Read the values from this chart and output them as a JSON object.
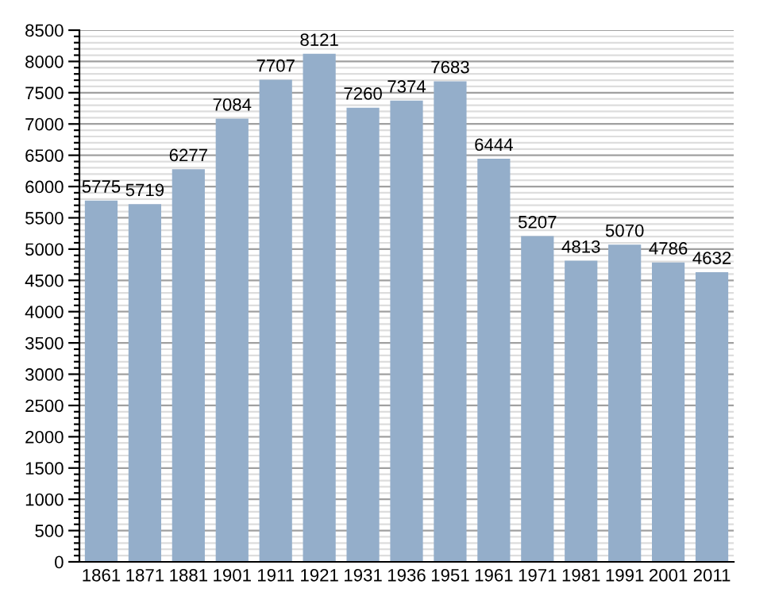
{
  "chart_data": {
    "type": "bar",
    "categories": [
      "1861",
      "1871",
      "1881",
      "1901",
      "1911",
      "1921",
      "1931",
      "1936",
      "1951",
      "1961",
      "1971",
      "1981",
      "1991",
      "2001",
      "2011"
    ],
    "values": [
      5775,
      5719,
      6277,
      7084,
      7707,
      8121,
      7260,
      7374,
      7683,
      6444,
      5207,
      4813,
      5070,
      4786,
      4632
    ],
    "color": "#94aeca",
    "data_labels": true,
    "ylim": [
      0,
      8500
    ],
    "yticks": [
      0,
      {
        "value": 100,
        "label": null
      },
      {
        "value": 200,
        "label": null
      },
      {
        "value": 300,
        "label": null
      },
      {
        "value": 400,
        "label": null
      },
      500,
      {
        "value": 600,
        "label": null
      },
      {
        "value": 700,
        "label": null
      },
      {
        "value": 800,
        "label": null
      },
      {
        "value": 900,
        "label": null
      },
      1000,
      {
        "value": 1100,
        "label": null
      },
      {
        "value": 1200,
        "label": null
      },
      {
        "value": 1300,
        "label": null
      },
      {
        "value": 1400,
        "label": null
      },
      1500,
      {
        "value": 1600,
        "label": null
      },
      {
        "value": 1700,
        "label": null
      },
      {
        "value": 1800,
        "label": null
      },
      {
        "value": 1900,
        "label": null
      },
      2000,
      {
        "value": 2100,
        "label": null
      },
      {
        "value": 2200,
        "label": null
      },
      {
        "value": 2300,
        "label": null
      },
      {
        "value": 2400,
        "label": null
      },
      2500,
      {
        "value": 2600,
        "label": null
      },
      {
        "value": 2700,
        "label": null
      },
      {
        "value": 2800,
        "label": null
      },
      {
        "value": 2900,
        "label": null
      },
      3000,
      {
        "value": 3100,
        "label": null
      },
      {
        "value": 3200,
        "label": null
      },
      {
        "value": 3300,
        "label": null
      },
      {
        "value": 3400,
        "label": null
      },
      3500,
      {
        "value": 3600,
        "label": null
      },
      {
        "value": 3700,
        "label": null
      },
      {
        "value": 3800,
        "label": null
      },
      {
        "value": 3900,
        "label": null
      },
      4000,
      {
        "value": 4100,
        "label": null
      },
      {
        "value": 4200,
        "label": null
      },
      {
        "value": 4300,
        "label": null
      },
      {
        "value": 4400,
        "label": null
      },
      4500,
      {
        "value": 4600,
        "label": null
      },
      {
        "value": 4700,
        "label": null
      },
      {
        "value": 4800,
        "label": null
      },
      {
        "value": 4900,
        "label": null
      },
      5000,
      {
        "value": 5100,
        "label": null
      },
      {
        "value": 5200,
        "label": null
      },
      {
        "value": 5300,
        "label": null
      },
      {
        "value": 5400,
        "label": null
      },
      5500,
      {
        "value": 5600,
        "label": null
      },
      {
        "value": 5700,
        "label": null
      },
      {
        "value": 5800,
        "label": null
      },
      {
        "value": 5900,
        "label": null
      },
      6000,
      {
        "value": 6100,
        "label": null
      },
      {
        "value": 6200,
        "label": null
      },
      {
        "value": 6300,
        "label": null
      },
      {
        "value": 6400,
        "label": null
      },
      6500,
      {
        "value": 6600,
        "label": null
      },
      {
        "value": 6700,
        "label": null
      },
      {
        "value": 6800,
        "label": null
      },
      {
        "value": 6900,
        "label": null
      },
      7000,
      {
        "value": 7100,
        "label": null
      },
      {
        "value": 7200,
        "label": null
      },
      {
        "value": 7300,
        "label": null
      },
      {
        "value": 7400,
        "label": null
      },
      7500,
      {
        "value": 7600,
        "label": null
      },
      {
        "value": 7700,
        "label": null
      },
      {
        "value": 7800,
        "label": null
      },
      {
        "value": 7900,
        "label": null
      },
      8000,
      {
        "value": 8100,
        "label": null
      },
      {
        "value": 8200,
        "label": null
      },
      {
        "value": 8300,
        "label": null
      },
      {
        "value": 8400,
        "label": null
      },
      8500
    ],
    "grid": "y"
  }
}
